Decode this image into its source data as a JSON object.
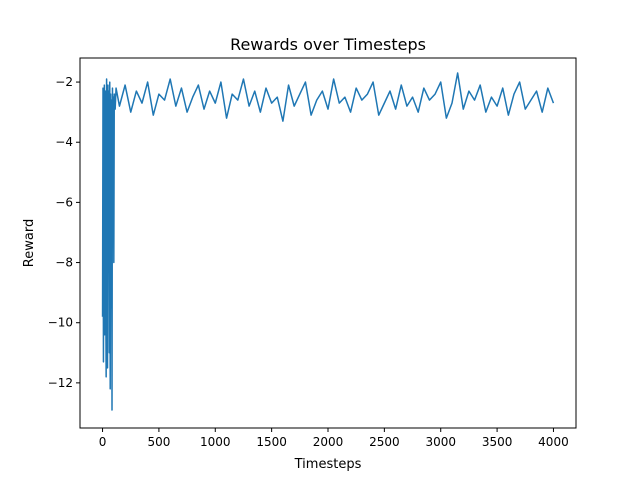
{
  "chart_data": {
    "type": "line",
    "title": "Rewards over Timesteps",
    "xlabel": "Timesteps",
    "ylabel": "Reward",
    "xlim": [
      -200,
      4200
    ],
    "ylim": [
      -13.5,
      -1.2
    ],
    "xticks": [
      0,
      500,
      1000,
      1500,
      2000,
      2500,
      3000,
      3500,
      4000
    ],
    "xtick_labels": [
      "0",
      "500",
      "1000",
      "1500",
      "2000",
      "2500",
      "3000",
      "3500",
      "4000"
    ],
    "yticks": [
      -12,
      -10,
      -8,
      -6,
      -4,
      -2
    ],
    "ytick_labels": [
      "−12",
      "−10",
      "−8",
      "−6",
      "−4",
      "−2"
    ],
    "grid": false,
    "line_color": "#1f77b4",
    "series": [
      {
        "x": [
          0,
          4,
          8,
          12,
          16,
          20,
          24,
          28,
          32,
          36,
          40,
          44,
          48,
          52,
          56,
          60,
          64,
          68,
          72,
          76,
          80,
          84,
          88,
          92,
          96,
          100,
          104,
          108,
          112,
          120,
          150,
          200,
          250,
          300,
          350,
          400,
          450,
          500,
          550,
          600,
          650,
          700,
          750,
          800,
          850,
          900,
          950,
          1000,
          1050,
          1100,
          1150,
          1200,
          1250,
          1300,
          1350,
          1400,
          1450,
          1500,
          1550,
          1600,
          1650,
          1700,
          1750,
          1800,
          1850,
          1900,
          1950,
          2000,
          2050,
          2100,
          2150,
          2200,
          2250,
          2300,
          2350,
          2400,
          2450,
          2500,
          2550,
          2600,
          2650,
          2700,
          2750,
          2800,
          2850,
          2900,
          2950,
          3000,
          3050,
          3100,
          3150,
          3200,
          3250,
          3300,
          3350,
          3400,
          3450,
          3500,
          3550,
          3600,
          3650,
          3700,
          3750,
          3800,
          3850,
          3900,
          3950,
          4000
        ],
        "y": [
          -9.8,
          -2.2,
          -11.3,
          -5.5,
          -2.1,
          -10.4,
          -2.3,
          -8.6,
          -11.8,
          -1.9,
          -4.4,
          -11.5,
          -2.1,
          -7.1,
          -2.3,
          -11.0,
          -2.0,
          -12.2,
          -2.4,
          -9.5,
          -2.6,
          -12.9,
          -2.2,
          -6.0,
          -2.5,
          -8.0,
          -2.4,
          -2.6,
          -2.9,
          -2.2,
          -2.8,
          -2.1,
          -3.0,
          -2.3,
          -2.7,
          -2.0,
          -3.1,
          -2.4,
          -2.6,
          -1.9,
          -2.8,
          -2.2,
          -3.0,
          -2.5,
          -2.1,
          -2.9,
          -2.3,
          -2.7,
          -2.0,
          -3.2,
          -2.4,
          -2.6,
          -1.9,
          -2.8,
          -2.3,
          -3.0,
          -2.2,
          -2.7,
          -2.5,
          -3.3,
          -2.1,
          -2.8,
          -2.4,
          -2.0,
          -3.1,
          -2.6,
          -2.3,
          -2.9,
          -1.9,
          -2.7,
          -2.5,
          -3.0,
          -2.2,
          -2.6,
          -2.4,
          -2.0,
          -3.1,
          -2.7,
          -2.3,
          -2.9,
          -2.1,
          -2.8,
          -2.5,
          -3.0,
          -2.2,
          -2.6,
          -2.4,
          -2.0,
          -3.2,
          -2.7,
          -1.7,
          -2.9,
          -2.3,
          -2.6,
          -2.1,
          -3.0,
          -2.5,
          -2.8,
          -2.2,
          -3.1,
          -2.4,
          -2.0,
          -2.9,
          -2.6,
          -2.3,
          -3.0,
          -2.2,
          -2.7
        ]
      }
    ]
  }
}
